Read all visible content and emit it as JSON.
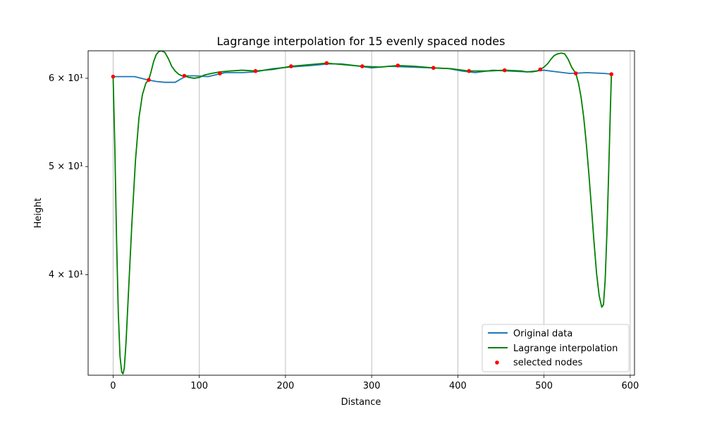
{
  "chart_data": {
    "type": "line",
    "title": "Lagrange interpolation for 15 evenly spaced nodes",
    "xlabel": "Distance",
    "ylabel": "Height",
    "xlim": [
      -29,
      605
    ],
    "ylim": [
      32.5,
      63.5
    ],
    "yscale": "log",
    "x_grid": true,
    "y_grid": false,
    "legend_position": "lower-right",
    "x_ticks": [
      0,
      100,
      200,
      300,
      400,
      500,
      600
    ],
    "y_ticks": [
      {
        "value": 40,
        "label": "4 × 10¹"
      },
      {
        "value": 50,
        "label": "5 × 10¹"
      },
      {
        "value": 60,
        "label": "6 × 10¹"
      }
    ],
    "series": [
      {
        "name": "Original data",
        "color": "#1f77b4",
        "style": "line",
        "x": [
          0,
          0.5,
          2,
          10,
          25,
          40,
          50,
          60,
          72,
          85,
          95,
          110,
          130,
          150,
          165,
          185,
          205,
          230,
          250,
          265,
          280,
          300,
          320,
          345,
          370,
          390,
          405,
          420,
          440,
          460,
          480,
          500,
          515,
          530,
          550,
          570,
          580
        ],
        "y": [
          60.2,
          60.1,
          60.2,
          60.2,
          60.2,
          59.8,
          59.6,
          59.5,
          59.5,
          60.3,
          60.3,
          60.2,
          60.7,
          60.7,
          60.8,
          61.2,
          61.4,
          61.6,
          61.8,
          61.8,
          61.6,
          61.3,
          61.5,
          61.4,
          61.3,
          61.2,
          60.9,
          60.7,
          61.0,
          60.9,
          60.8,
          61.0,
          60.8,
          60.6,
          60.7,
          60.6,
          60.5
        ]
      },
      {
        "name": "Lagrange interpolation",
        "color": "#008000",
        "style": "line",
        "x": [
          0,
          2,
          4,
          6,
          8,
          10,
          11.5,
          13,
          15,
          18,
          22,
          26,
          30,
          34,
          38,
          41.3,
          44,
          47,
          50,
          53,
          56,
          60,
          64,
          68,
          72,
          76,
          80,
          82.6,
          88,
          94,
          100,
          106,
          114,
          124,
          135,
          150,
          165.2,
          185,
          206.5,
          227,
          247.8,
          268,
          289.1,
          310,
          330.4,
          350,
          371.7,
          392,
          413,
          434,
          454.3,
          474,
          480,
          486,
          492,
          495.6,
          500,
          504,
          508,
          512,
          516,
          520,
          524,
          528,
          532,
          536.9,
          540,
          543,
          546,
          549,
          552,
          555,
          558,
          561,
          564,
          567,
          569,
          571,
          573,
          575,
          577,
          578.2
        ],
        "y": [
          60.2,
          52.0,
          43.0,
          37.0,
          33.8,
          32.7,
          32.6,
          33.0,
          34.8,
          38.8,
          44.8,
          50.7,
          55.3,
          58.0,
          59.4,
          59.8,
          60.8,
          62.1,
          63.0,
          63.4,
          63.5,
          63.3,
          62.5,
          61.5,
          60.9,
          60.5,
          60.3,
          60.3,
          60.1,
          60.0,
          60.1,
          60.4,
          60.6,
          60.8,
          60.9,
          61.0,
          60.9,
          61.1,
          61.5,
          61.7,
          61.9,
          61.7,
          61.5,
          61.4,
          61.6,
          61.5,
          61.3,
          61.2,
          60.9,
          60.9,
          61.0,
          60.9,
          60.8,
          60.8,
          60.9,
          61.1,
          61.4,
          61.8,
          62.4,
          62.9,
          63.1,
          63.2,
          63.1,
          62.4,
          61.4,
          60.6,
          59.4,
          57.7,
          55.4,
          52.5,
          49.3,
          46.0,
          42.8,
          40.1,
          38.3,
          37.4,
          37.6,
          39.6,
          43.6,
          49.3,
          56.2,
          60.5
        ]
      },
      {
        "name": "selected nodes",
        "color": "#ff0000",
        "style": "scatter",
        "x": [
          0,
          41.3,
          82.6,
          123.9,
          165.2,
          206.5,
          247.8,
          289.1,
          330.4,
          371.7,
          413.0,
          454.3,
          495.6,
          536.9,
          578.2
        ],
        "y": [
          60.2,
          59.8,
          60.3,
          60.6,
          60.9,
          61.5,
          61.9,
          61.5,
          61.6,
          61.3,
          60.9,
          61.0,
          61.1,
          60.6,
          60.5
        ]
      }
    ]
  }
}
